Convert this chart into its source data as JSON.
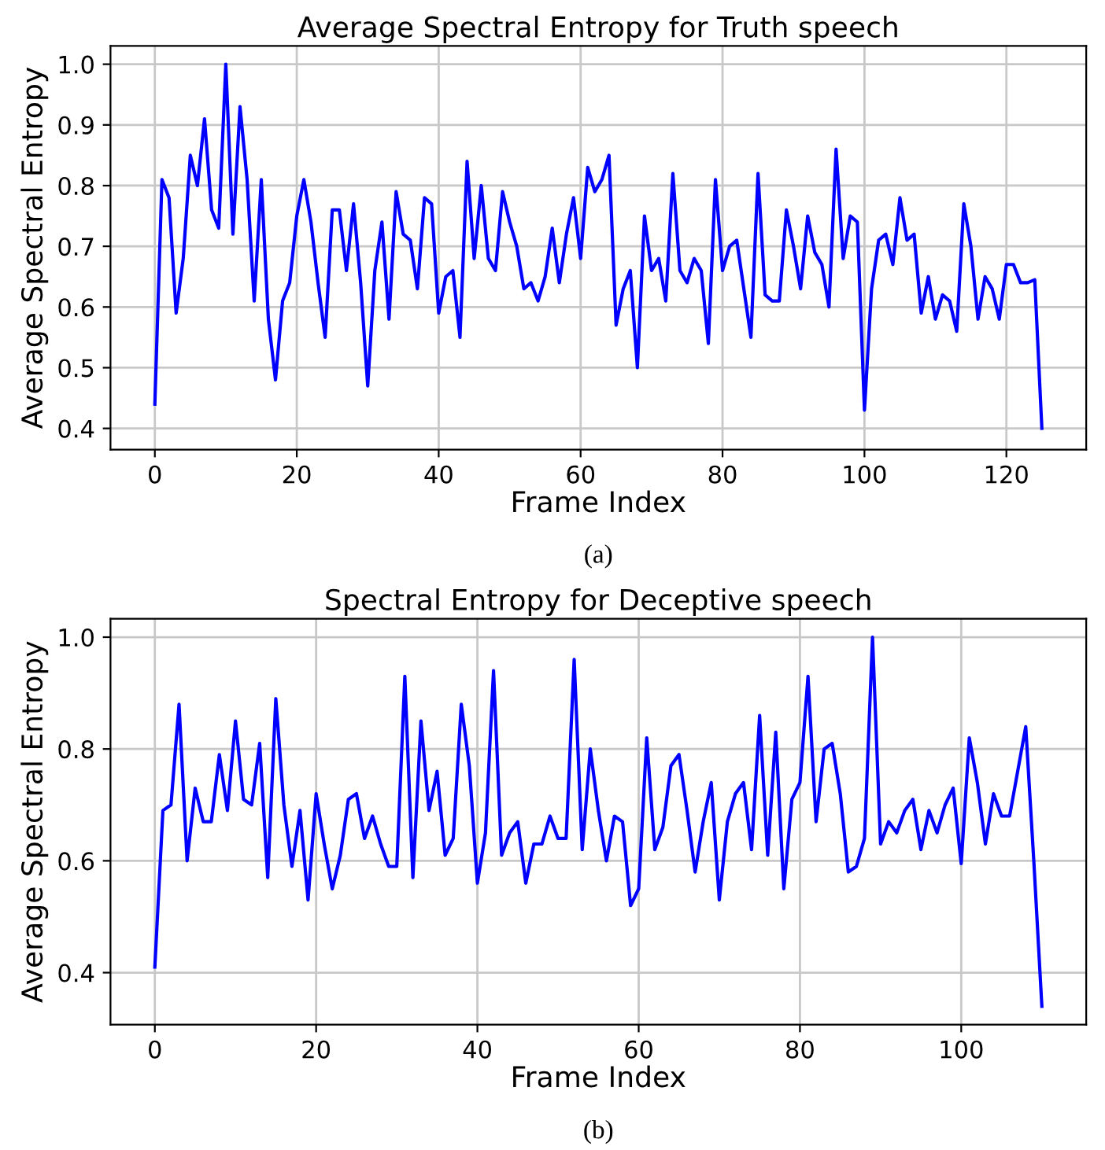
{
  "chart_data": [
    {
      "type": "line",
      "title": "Average Spectral Entropy for Truth speech",
      "xlabel": "Frame Index",
      "ylabel": "Average Spectral Entropy",
      "annotations": [
        "(a)"
      ],
      "grid": true,
      "xlim": [
        -6.25,
        131.25
      ],
      "ylim": [
        0.365,
        1.03
      ],
      "xticks": [
        0,
        20,
        40,
        60,
        80,
        100,
        120
      ],
      "yticks": [
        0.4,
        0.5,
        0.6,
        0.7,
        0.8,
        0.9,
        {
          "value": 1,
          "label": "1.0"
        }
      ],
      "x": [
        0,
        1,
        2,
        3,
        4,
        5,
        6,
        7,
        8,
        9,
        10,
        11,
        12,
        13,
        14,
        15,
        16,
        17,
        18,
        19,
        20,
        21,
        22,
        23,
        24,
        25,
        26,
        27,
        28,
        29,
        30,
        31,
        32,
        33,
        34,
        35,
        36,
        37,
        38,
        39,
        40,
        41,
        42,
        43,
        44,
        45,
        46,
        47,
        48,
        49,
        50,
        51,
        52,
        53,
        54,
        55,
        56,
        57,
        58,
        59,
        60,
        61,
        62,
        63,
        64,
        65,
        66,
        67,
        68,
        69,
        70,
        71,
        72,
        73,
        74,
        75,
        76,
        77,
        78,
        79,
        80,
        81,
        82,
        83,
        84,
        85,
        86,
        87,
        88,
        89,
        90,
        91,
        92,
        93,
        94,
        95,
        96,
        97,
        98,
        99,
        100,
        101,
        102,
        103,
        104,
        105,
        106,
        107,
        108,
        109,
        110,
        111,
        112,
        113,
        114,
        115,
        116,
        117,
        118,
        119,
        120,
        121,
        122,
        123,
        124,
        125
      ],
      "series": [
        {
          "color": "#0000ff",
          "values": [
            0.44,
            0.81,
            0.78,
            0.59,
            0.68,
            0.85,
            0.8,
            0.91,
            0.76,
            0.73,
            1.0,
            0.72,
            0.93,
            0.81,
            0.61,
            0.81,
            0.58,
            0.48,
            0.61,
            0.64,
            0.75,
            0.81,
            0.74,
            0.64,
            0.55,
            0.76,
            0.76,
            0.66,
            0.77,
            0.64,
            0.47,
            0.66,
            0.74,
            0.58,
            0.79,
            0.72,
            0.71,
            0.63,
            0.78,
            0.77,
            0.59,
            0.65,
            0.66,
            0.55,
            0.84,
            0.68,
            0.8,
            0.68,
            0.66,
            0.79,
            0.74,
            0.7,
            0.63,
            0.64,
            0.61,
            0.65,
            0.73,
            0.64,
            0.72,
            0.78,
            0.68,
            0.83,
            0.79,
            0.81,
            0.85,
            0.57,
            0.63,
            0.66,
            0.5,
            0.75,
            0.66,
            0.68,
            0.61,
            0.82,
            0.66,
            0.64,
            0.68,
            0.66,
            0.54,
            0.81,
            0.66,
            0.7,
            0.71,
            0.63,
            0.55,
            0.82,
            0.62,
            0.61,
            0.61,
            0.76,
            0.7,
            0.63,
            0.75,
            0.69,
            0.67,
            0.6,
            0.86,
            0.68,
            0.75,
            0.74,
            0.43,
            0.63,
            0.71,
            0.72,
            0.67,
            0.78,
            0.71,
            0.72,
            0.59,
            0.65,
            0.58,
            0.62,
            0.61,
            0.56,
            0.77,
            0.7,
            0.58,
            0.65,
            0.63,
            0.58,
            0.67,
            0.67,
            0.64,
            0.64,
            0.645,
            0.4
          ]
        }
      ]
    },
    {
      "type": "line",
      "title": "Spectral Entropy for Deceptive speech",
      "xlabel": "Frame Index",
      "ylabel": "Average Spectral Entropy",
      "annotations": [
        "(b)"
      ],
      "grid": true,
      "xlim": [
        -5.5,
        115.5
      ],
      "ylim": [
        0.307,
        1.033
      ],
      "xticks": [
        0,
        20,
        40,
        60,
        80,
        100
      ],
      "yticks": [
        0.4,
        0.6,
        0.8,
        {
          "value": 1,
          "label": "1.0"
        }
      ],
      "x": [
        0,
        1,
        2,
        3,
        4,
        5,
        6,
        7,
        8,
        9,
        10,
        11,
        12,
        13,
        14,
        15,
        16,
        17,
        18,
        19,
        20,
        21,
        22,
        23,
        24,
        25,
        26,
        27,
        28,
        29,
        30,
        31,
        32,
        33,
        34,
        35,
        36,
        37,
        38,
        39,
        40,
        41,
        42,
        43,
        44,
        45,
        46,
        47,
        48,
        49,
        50,
        51,
        52,
        53,
        54,
        55,
        56,
        57,
        58,
        59,
        60,
        61,
        62,
        63,
        64,
        65,
        66,
        67,
        68,
        69,
        70,
        71,
        72,
        73,
        74,
        75,
        76,
        77,
        78,
        79,
        80,
        81,
        82,
        83,
        84,
        85,
        86,
        87,
        88,
        89,
        90,
        91,
        92,
        93,
        94,
        95,
        96,
        97,
        98,
        99,
        100,
        101,
        102,
        103,
        104,
        105,
        106,
        107,
        108,
        109,
        110
      ],
      "series": [
        {
          "color": "#0000ff",
          "values": [
            0.41,
            0.69,
            0.7,
            0.88,
            0.6,
            0.73,
            0.67,
            0.67,
            0.79,
            0.69,
            0.85,
            0.71,
            0.7,
            0.81,
            0.57,
            0.89,
            0.7,
            0.59,
            0.69,
            0.53,
            0.72,
            0.63,
            0.55,
            0.61,
            0.71,
            0.72,
            0.64,
            0.68,
            0.63,
            0.59,
            0.59,
            0.93,
            0.57,
            0.85,
            0.69,
            0.76,
            0.61,
            0.64,
            0.88,
            0.77,
            0.56,
            0.65,
            0.94,
            0.61,
            0.65,
            0.67,
            0.56,
            0.63,
            0.63,
            0.68,
            0.64,
            0.64,
            0.96,
            0.62,
            0.8,
            0.69,
            0.6,
            0.68,
            0.67,
            0.52,
            0.55,
            0.82,
            0.62,
            0.66,
            0.77,
            0.79,
            0.69,
            0.58,
            0.67,
            0.74,
            0.53,
            0.67,
            0.72,
            0.74,
            0.62,
            0.86,
            0.61,
            0.83,
            0.55,
            0.71,
            0.74,
            0.93,
            0.67,
            0.8,
            0.81,
            0.72,
            0.58,
            0.59,
            0.64,
            1.0,
            0.63,
            0.67,
            0.65,
            0.69,
            0.71,
            0.62,
            0.69,
            0.65,
            0.7,
            0.73,
            0.595,
            0.82,
            0.74,
            0.63,
            0.72,
            0.68,
            0.68,
            0.76,
            0.84,
            0.6,
            0.34
          ]
        }
      ]
    }
  ]
}
